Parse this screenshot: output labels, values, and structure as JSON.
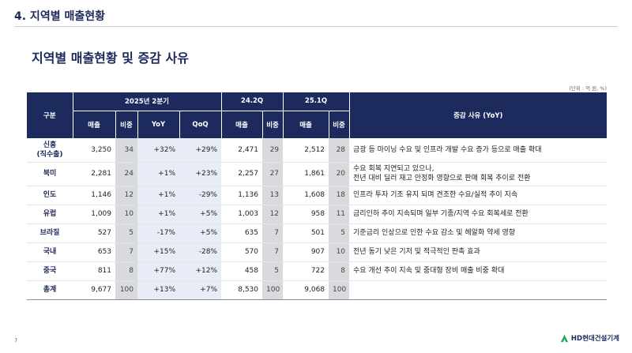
{
  "header": {
    "section_title": "4. 지역별 매출현황",
    "page_title": "지역별 매출현황 및 증감 사유",
    "unit_note": "(단위 : 억 원, %)"
  },
  "table": {
    "col_region": "구분",
    "group_2025q2": "2025년 2분기",
    "group_242q": "24.2Q",
    "group_251q": "25.1Q",
    "col_reason": "증감 사유 (YoY)",
    "col_sales": "매출",
    "col_share": "비중",
    "col_yoy": "YoY",
    "col_qoq": "QoQ",
    "rows": [
      {
        "region": "신흥",
        "region_sub": "(직수출)",
        "sales": "3,250",
        "share": "34",
        "yoy": "+32%",
        "qoq": "+29%",
        "s242": "2,471",
        "sh242": "29",
        "s251": "2,512",
        "sh251": "28",
        "reason1": "금광 등 마이닝 수요 및 인프라 개발 수요 증가 등으로 매출 확대",
        "reason2": ""
      },
      {
        "region": "북미",
        "region_sub": "",
        "sales": "2,281",
        "share": "24",
        "yoy": "+1%",
        "qoq": "+23%",
        "s242": "2,257",
        "sh242": "27",
        "s251": "1,861",
        "sh251": "20",
        "reason1": "수요 회복 지연되고 있으나,",
        "reason2": "전년 대비 딜러 재고 안정화 영향으로 판매 회복 추이로 전환"
      },
      {
        "region": "인도",
        "region_sub": "",
        "sales": "1,146",
        "share": "12",
        "yoy": "+1%",
        "qoq": "-29%",
        "s242": "1,136",
        "sh242": "13",
        "s251": "1,608",
        "sh251": "18",
        "reason1": "인프라 투자 기조 유지 되며 견조한 수요/실적 추이 지속",
        "reason2": ""
      },
      {
        "region": "유럽",
        "region_sub": "",
        "sales": "1,009",
        "share": "10",
        "yoy": "+1%",
        "qoq": "+5%",
        "s242": "1,003",
        "sh242": "12",
        "s251": "958",
        "sh251": "11",
        "reason1": "금리인하 추이 지속되며 일부 기종/지역 수요 회복세로 전환",
        "reason2": ""
      },
      {
        "region": "브라질",
        "region_sub": "",
        "sales": "527",
        "share": "5",
        "yoy": "-17%",
        "qoq": "+5%",
        "s242": "635",
        "sh242": "7",
        "s251": "501",
        "sh251": "5",
        "reason1": "기준금리 인상으로 인한 수요 감소 및 헤알화 약세 영향",
        "reason2": ""
      },
      {
        "region": "국내",
        "region_sub": "",
        "sales": "653",
        "share": "7",
        "yoy": "+15%",
        "qoq": "-28%",
        "s242": "570",
        "sh242": "7",
        "s251": "907",
        "sh251": "10",
        "reason1": "전년 동기 낮은 기저 및 적극적인 판촉 효과",
        "reason2": ""
      },
      {
        "region": "중국",
        "region_sub": "",
        "sales": "811",
        "share": "8",
        "yoy": "+77%",
        "qoq": "+12%",
        "s242": "458",
        "sh242": "5",
        "s251": "722",
        "sh251": "8",
        "reason1": "수요 개선 추이 지속 및 중대형 장비 매출 비중 확대",
        "reason2": ""
      },
      {
        "region": "총계",
        "region_sub": "",
        "sales": "9,677",
        "share": "100",
        "yoy": "+13%",
        "qoq": "+7%",
        "s242": "8,530",
        "sh242": "100",
        "s251": "9,068",
        "sh251": "100",
        "reason1": "",
        "reason2": ""
      }
    ]
  },
  "footer": {
    "page_number": "7",
    "logo_text": "HD현대건설기계"
  }
}
